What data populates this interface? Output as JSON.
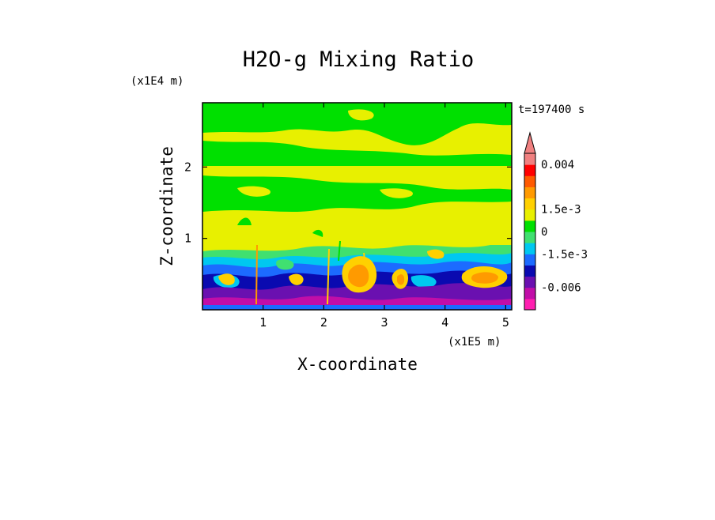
{
  "chart_data": {
    "type": "heatmap",
    "title": "H2O-g Mixing Ratio",
    "xlabel": "X-coordinate",
    "ylabel": "Z-coordinate",
    "x_unit": "(x1E5 m)",
    "y_unit": "(x1E4 m)",
    "time_label": "t=197400 s",
    "xlim": [
      0.0,
      5.1
    ],
    "ylim": [
      0.0,
      2.9
    ],
    "x_ticks": [
      "1",
      "2",
      "3",
      "4",
      "5"
    ],
    "x_tick_values": [
      1,
      2,
      3,
      4,
      5
    ],
    "y_ticks": [
      "1",
      "2"
    ],
    "y_tick_values": [
      1,
      2
    ],
    "colorbar": {
      "levels": [
        "-0.006",
        "-1.5e-3",
        "0",
        "1.5e-3",
        "0.004"
      ],
      "colors": [
        "#ff1fb0",
        "#c10ea8",
        "#6a10b0",
        "#0a0ab0",
        "#1c6bff",
        "#00c8f0",
        "#40e070",
        "#00e000",
        "#e8f000",
        "#ffd000",
        "#ff9a00",
        "#ff5a00",
        "#ff0000",
        "#f08080"
      ],
      "extend": "max"
    },
    "regions": [
      {
        "zone": "z 1.0-2.9",
        "dominant_value": "0 to 1.5e-3",
        "colors": [
          "#e8f000",
          "#00e000"
        ]
      },
      {
        "zone": "z 0.5-1.0",
        "dominant_value": "-1.5e-3 to 0",
        "colors": [
          "#00c8f0",
          "#1c6bff",
          "#0a0ab0"
        ]
      },
      {
        "zone": "z 0-0.5",
        "dominant_value": "< -1.5e-3",
        "colors": [
          "#6a10b0",
          "#c10ea8"
        ]
      },
      {
        "zone": "plumes near x 2.3-3.3, 4.5-5.0",
        "dominant_value": "1.5e-3 to 0.004",
        "colors": [
          "#ff9a00",
          "#ffd000"
        ]
      }
    ]
  }
}
